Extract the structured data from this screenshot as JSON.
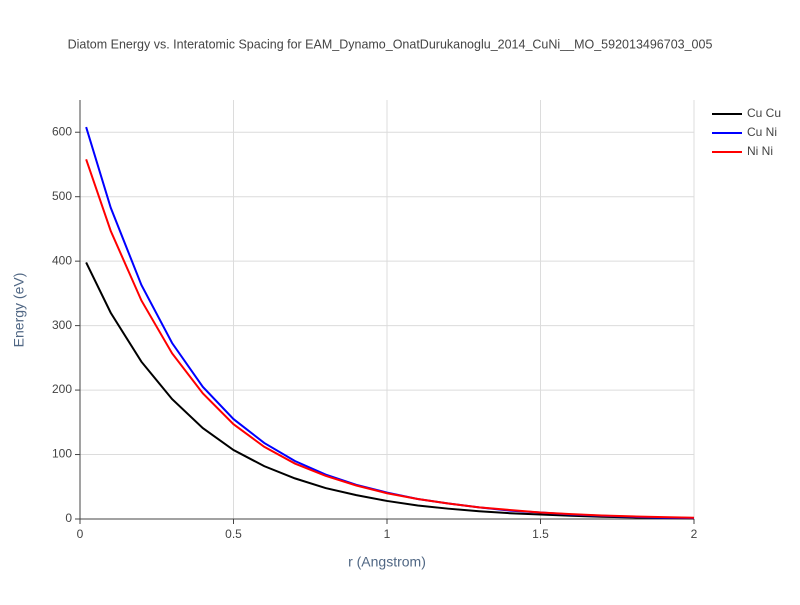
{
  "chart_data": {
    "type": "line",
    "title": "Diatom Energy vs. Interatomic Spacing for EAM_Dynamo_OnatDurukanoglu_2014_CuNi__MO_592013496703_005",
    "x_label": "r (Angstrom)",
    "y_label": "Energy (eV)",
    "x": [
      0.02,
      0.1,
      0.2,
      0.3,
      0.4,
      0.5,
      0.6,
      0.7,
      0.8,
      0.9,
      1.0,
      1.1,
      1.2,
      1.3,
      1.4,
      1.5,
      1.6,
      1.7,
      1.8,
      1.9,
      2.0
    ],
    "series": [
      {
        "name": "Cu Cu",
        "color": "#000000",
        "values": [
          398,
          320,
          244,
          186,
          141,
          107,
          82,
          63,
          48,
          37,
          28,
          21,
          16,
          12,
          9,
          7,
          5,
          3.5,
          2.5,
          1.5,
          1
        ]
      },
      {
        "name": "Cu Ni",
        "color": "#0000ff",
        "values": [
          608,
          483,
          363,
          273,
          205,
          155,
          118,
          90,
          69,
          53,
          41,
          31,
          24,
          18,
          13,
          10,
          7,
          5,
          3.5,
          2,
          1.5
        ]
      },
      {
        "name": "Ni Ni",
        "color": "#ff0000",
        "values": [
          558,
          447,
          339,
          257,
          195,
          147,
          112,
          86,
          67,
          52,
          40,
          31,
          24,
          18,
          14,
          10,
          7.5,
          5.5,
          4,
          3,
          2
        ]
      }
    ],
    "xlim": [
      0,
      2
    ],
    "ylim": [
      0,
      650
    ],
    "xticks": [
      0,
      0.5,
      1,
      1.5,
      2
    ],
    "yticks": [
      0,
      100,
      200,
      300,
      400,
      500,
      600
    ],
    "grid": true,
    "legend": "top-right"
  }
}
